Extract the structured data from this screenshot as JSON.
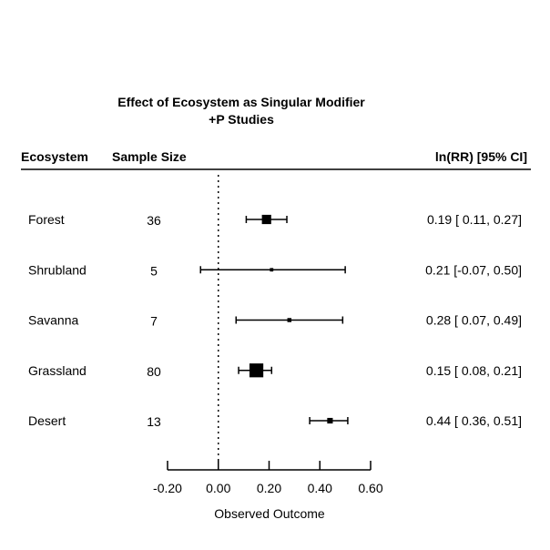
{
  "chart_data": {
    "type": "forest",
    "title": "Effect of Ecosystem as Singular Modifier",
    "subtitle": "+P Studies",
    "headers": {
      "ecosystem": "Ecosystem",
      "sample_size": "Sample Size",
      "estimate": "ln(RR) [95% CI]"
    },
    "xlabel": "Observed Outcome",
    "xlim": [
      -0.2,
      0.6
    ],
    "xticks": [
      -0.2,
      0.0,
      0.2,
      0.4,
      0.6
    ],
    "xtick_labels": [
      "-0.20",
      "0.00",
      "0.20",
      "0.40",
      "0.60"
    ],
    "reference_line": 0,
    "rows": [
      {
        "ecosystem": "Forest",
        "n": "36",
        "est": 0.19,
        "lo": 0.11,
        "hi": 0.27,
        "ci_text": "0.19 [ 0.11, 0.27]"
      },
      {
        "ecosystem": "Shrubland",
        "n": "5",
        "est": 0.21,
        "lo": -0.07,
        "hi": 0.5,
        "ci_text": "0.21 [-0.07, 0.50]"
      },
      {
        "ecosystem": "Savanna",
        "n": "7",
        "est": 0.28,
        "lo": 0.07,
        "hi": 0.49,
        "ci_text": "0.28 [ 0.07, 0.49]"
      },
      {
        "ecosystem": "Grassland",
        "n": "80",
        "est": 0.15,
        "lo": 0.08,
        "hi": 0.21,
        "ci_text": "0.15 [ 0.08, 0.21]"
      },
      {
        "ecosystem": "Desert",
        "n": "13",
        "est": 0.44,
        "lo": 0.36,
        "hi": 0.51,
        "ci_text": "0.44 [ 0.36, 0.51]"
      }
    ]
  }
}
